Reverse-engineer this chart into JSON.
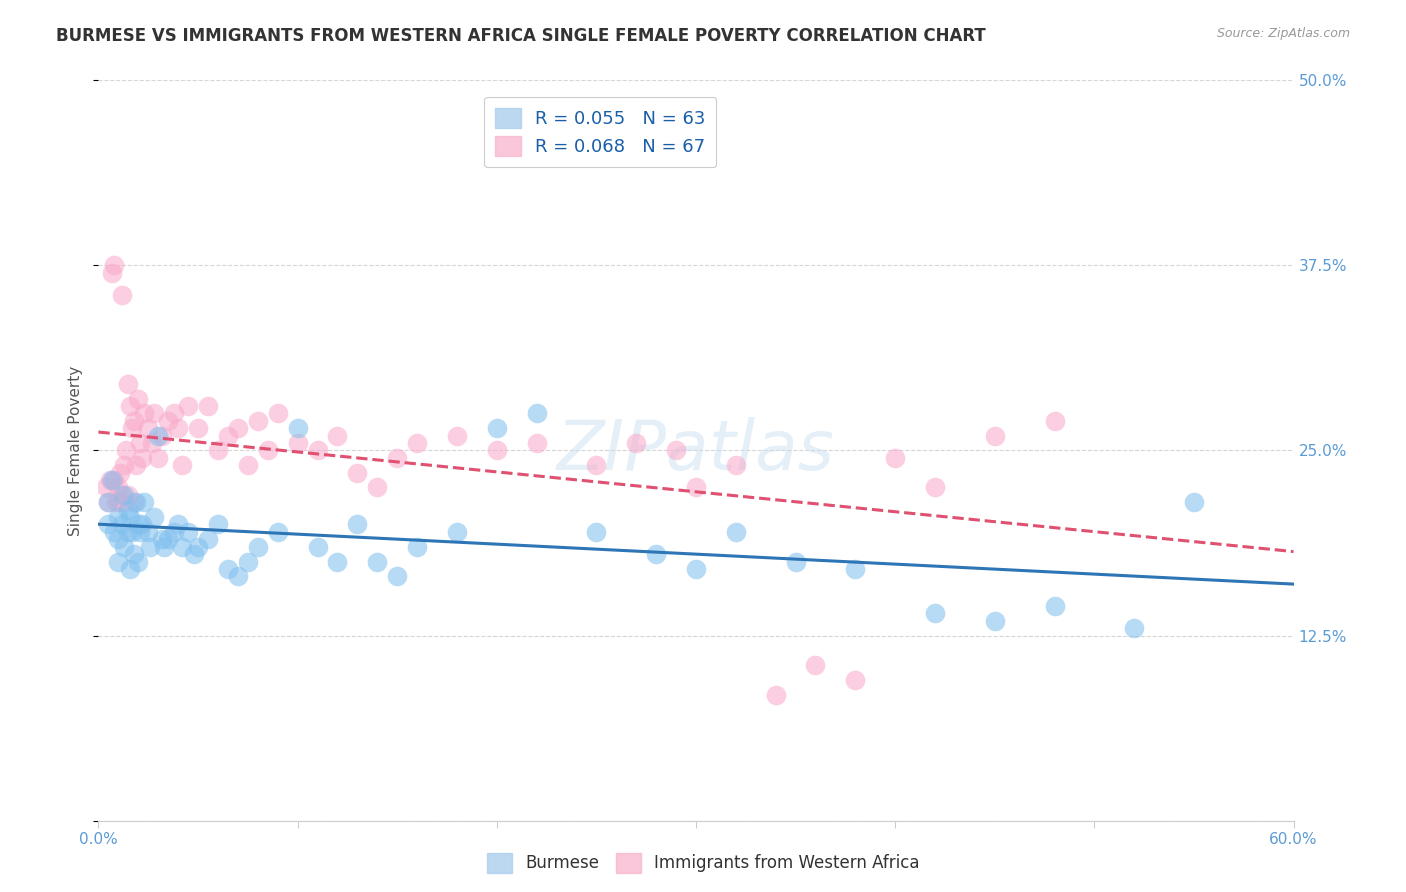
{
  "title": "BURMESE VS IMMIGRANTS FROM WESTERN AFRICA SINGLE FEMALE POVERTY CORRELATION CHART",
  "source": "Source: ZipAtlas.com",
  "ylabel": "Single Female Poverty",
  "xlim": [
    0.0,
    0.6
  ],
  "ylim": [
    0.0,
    0.5
  ],
  "xticks": [
    0.0,
    0.1,
    0.2,
    0.3,
    0.4,
    0.5,
    0.6
  ],
  "xticklabels": [
    "0.0%",
    "",
    "",
    "",
    "",
    "",
    "60.0%"
  ],
  "yticks": [
    0.0,
    0.125,
    0.25,
    0.375,
    0.5
  ],
  "yticklabels": [
    "",
    "12.5%",
    "25.0%",
    "37.5%",
    "50.0%"
  ],
  "legend1_label": "R = 0.055   N = 63",
  "legend2_label": "R = 0.068   N = 67",
  "burmese_color": "#7fbfee",
  "western_africa_color": "#f9a8c9",
  "burmese_line_color": "#2e75b6",
  "western_africa_line_color": "#e05070",
  "watermark": "ZIPatlas",
  "grid_color": "#cccccc",
  "background_color": "#ffffff",
  "title_fontsize": 12,
  "axis_label_fontsize": 11,
  "tick_fontsize": 11,
  "tick_color": "#5b9bd5",
  "burmese_x": [
    0.005,
    0.005,
    0.007,
    0.008,
    0.01,
    0.01,
    0.01,
    0.012,
    0.013,
    0.013,
    0.015,
    0.015,
    0.016,
    0.016,
    0.017,
    0.018,
    0.019,
    0.02,
    0.02,
    0.021,
    0.022,
    0.023,
    0.025,
    0.026,
    0.028,
    0.03,
    0.032,
    0.033,
    0.035,
    0.038,
    0.04,
    0.042,
    0.045,
    0.048,
    0.05,
    0.055,
    0.06,
    0.065,
    0.07,
    0.075,
    0.08,
    0.09,
    0.1,
    0.11,
    0.12,
    0.13,
    0.14,
    0.15,
    0.16,
    0.18,
    0.2,
    0.22,
    0.25,
    0.28,
    0.3,
    0.32,
    0.35,
    0.38,
    0.42,
    0.45,
    0.48,
    0.52,
    0.55
  ],
  "burmese_y": [
    0.215,
    0.2,
    0.23,
    0.195,
    0.205,
    0.19,
    0.175,
    0.2,
    0.22,
    0.185,
    0.21,
    0.195,
    0.205,
    0.17,
    0.195,
    0.18,
    0.215,
    0.2,
    0.175,
    0.195,
    0.2,
    0.215,
    0.195,
    0.185,
    0.205,
    0.26,
    0.19,
    0.185,
    0.19,
    0.195,
    0.2,
    0.185,
    0.195,
    0.18,
    0.185,
    0.19,
    0.2,
    0.17,
    0.165,
    0.175,
    0.185,
    0.195,
    0.265,
    0.185,
    0.175,
    0.2,
    0.175,
    0.165,
    0.185,
    0.195,
    0.265,
    0.275,
    0.195,
    0.18,
    0.17,
    0.195,
    0.175,
    0.17,
    0.14,
    0.135,
    0.145,
    0.13,
    0.215
  ],
  "western_africa_x": [
    0.004,
    0.005,
    0.006,
    0.007,
    0.008,
    0.008,
    0.009,
    0.01,
    0.01,
    0.011,
    0.012,
    0.012,
    0.013,
    0.013,
    0.014,
    0.015,
    0.015,
    0.016,
    0.017,
    0.018,
    0.018,
    0.019,
    0.02,
    0.021,
    0.022,
    0.023,
    0.025,
    0.027,
    0.028,
    0.03,
    0.032,
    0.035,
    0.038,
    0.04,
    0.042,
    0.045,
    0.05,
    0.055,
    0.06,
    0.065,
    0.07,
    0.075,
    0.08,
    0.085,
    0.09,
    0.1,
    0.11,
    0.12,
    0.13,
    0.14,
    0.15,
    0.16,
    0.18,
    0.2,
    0.22,
    0.25,
    0.27,
    0.29,
    0.3,
    0.32,
    0.34,
    0.36,
    0.38,
    0.4,
    0.42,
    0.45,
    0.48
  ],
  "western_africa_y": [
    0.225,
    0.215,
    0.23,
    0.37,
    0.23,
    0.375,
    0.215,
    0.225,
    0.215,
    0.235,
    0.355,
    0.22,
    0.24,
    0.215,
    0.25,
    0.295,
    0.22,
    0.28,
    0.265,
    0.27,
    0.215,
    0.24,
    0.285,
    0.255,
    0.245,
    0.275,
    0.265,
    0.255,
    0.275,
    0.245,
    0.26,
    0.27,
    0.275,
    0.265,
    0.24,
    0.28,
    0.265,
    0.28,
    0.25,
    0.26,
    0.265,
    0.24,
    0.27,
    0.25,
    0.275,
    0.255,
    0.25,
    0.26,
    0.235,
    0.225,
    0.245,
    0.255,
    0.26,
    0.25,
    0.255,
    0.24,
    0.255,
    0.25,
    0.225,
    0.24,
    0.085,
    0.105,
    0.095,
    0.245,
    0.225,
    0.26,
    0.27
  ]
}
